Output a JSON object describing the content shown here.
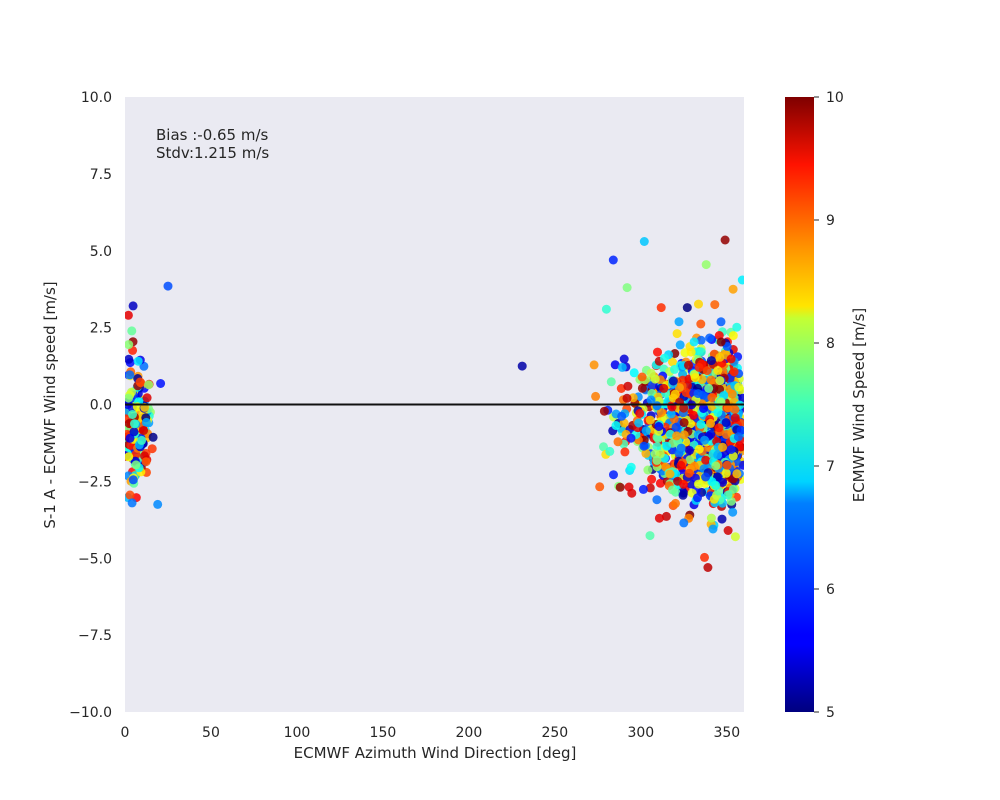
{
  "chart_data": {
    "type": "scatter",
    "xlabel": "ECMWF Azimuth Wind Direction [deg]",
    "ylabel": "S-1 A - ECMWF Wind speed [m/s]",
    "xlim": [
      0,
      360
    ],
    "ylim": [
      -10,
      10
    ],
    "x_ticks": [
      "0",
      "50",
      "100",
      "150",
      "200",
      "250",
      "300",
      "350"
    ],
    "y_ticks": [
      "10.0",
      "7.5",
      "5.0",
      "2.5",
      "0.0",
      "−2.5",
      "−5.0",
      "−7.5",
      "−10.0"
    ],
    "annotations": [
      "Bias :-0.65 m/s",
      "Stdv:1.215 m/s"
    ],
    "reference_line_y": 0,
    "colorbar": {
      "label": "ECMWF Wind Speed [m/s]",
      "range": [
        5,
        10
      ],
      "ticks": [
        "5",
        "6",
        "7",
        "8",
        "9",
        "10"
      ],
      "colormap": "jet"
    },
    "grid": false,
    "background": "#eaeaf2",
    "point_cloud_regions": [
      {
        "x_range": [
          0,
          25
        ],
        "y_range": [
          -3.2,
          3.9
        ],
        "approx_count": 200
      },
      {
        "x_range": [
          270,
          360
        ],
        "y_range": [
          -5.3,
          5.3
        ],
        "approx_count": 1500
      }
    ],
    "highlighted_points": [
      {
        "x": 25,
        "y": 3.85,
        "c": 6.0
      },
      {
        "x": 2,
        "y": 2.9,
        "c": 9.5
      },
      {
        "x": 19,
        "y": -3.25,
        "c": 6.3
      },
      {
        "x": 231,
        "y": 1.25,
        "c": 5.2
      },
      {
        "x": 302,
        "y": 5.3,
        "c": 6.6
      },
      {
        "x": 349,
        "y": 5.35,
        "c": 9.9
      },
      {
        "x": 284,
        "y": 4.7,
        "c": 5.8
      },
      {
        "x": 338,
        "y": 4.55,
        "c": 7.6
      },
      {
        "x": 359,
        "y": 4.05,
        "c": 6.8
      },
      {
        "x": 339,
        "y": -5.3,
        "c": 9.7
      },
      {
        "x": 342,
        "y": -4.05,
        "c": 6.4
      },
      {
        "x": 355,
        "y": -4.3,
        "c": 7.9
      },
      {
        "x": 325,
        "y": -3.85,
        "c": 6.2
      },
      {
        "x": 292,
        "y": 3.8,
        "c": 7.5
      },
      {
        "x": 327,
        "y": 3.15,
        "c": 5.0
      },
      {
        "x": 343,
        "y": 3.25,
        "c": 8.9
      },
      {
        "x": 280,
        "y": 3.1,
        "c": 7.1
      }
    ]
  }
}
